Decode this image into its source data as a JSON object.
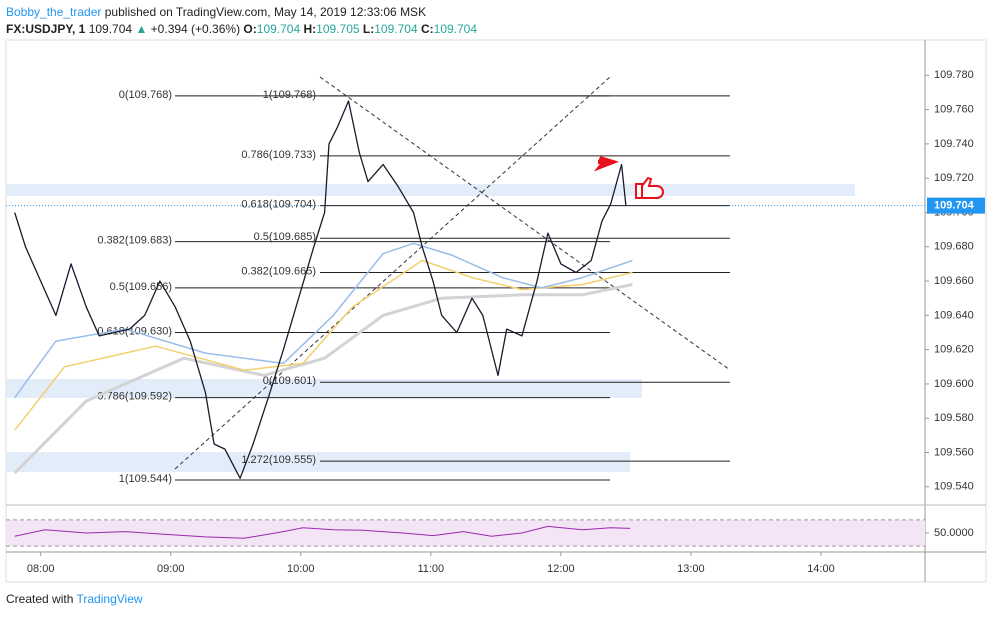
{
  "header": {
    "author": "Bobby_the_trader",
    "published": "published on TradingView.com, May 14, 2019 12:33:06 MSK",
    "symbol": "FX:USDJPY, 1",
    "last": "109.704",
    "arrow": "▲",
    "change": "+0.394 (+0.36%)",
    "o_label": "O:",
    "o": "109.704",
    "h_label": "H:",
    "h": "109.705",
    "l_label": "L:",
    "l": "109.704",
    "c_label": "C:",
    "c": "109.704"
  },
  "footer": {
    "created": "Created with",
    "brand": "TradingView"
  },
  "chart_data": {
    "type": "line",
    "xlim": [
      -16,
      408
    ],
    "xticks": [
      {
        "value": 0,
        "label": "08:00"
      },
      {
        "value": 60,
        "label": "09:00"
      },
      {
        "value": 120,
        "label": "10:00"
      },
      {
        "value": 180,
        "label": "11:00"
      },
      {
        "value": 240,
        "label": "12:00"
      },
      {
        "value": 300,
        "label": "13:00"
      },
      {
        "value": 360,
        "label": "14:00"
      }
    ],
    "ylim": [
      109.5294,
      109.8006
    ],
    "yticks": [
      {
        "value": 109.54,
        "label": "109.540"
      },
      {
        "value": 109.56,
        "label": "109.560"
      },
      {
        "value": 109.58,
        "label": "109.580"
      },
      {
        "value": 109.6,
        "label": "109.600"
      },
      {
        "value": 109.62,
        "label": "109.620"
      },
      {
        "value": 109.64,
        "label": "109.640"
      },
      {
        "value": 109.66,
        "label": "109.660"
      },
      {
        "value": 109.68,
        "label": "109.680"
      },
      {
        "value": 109.7,
        "label": "109.700"
      },
      {
        "value": 109.72,
        "label": "109.720"
      },
      {
        "value": 109.74,
        "label": "109.740"
      },
      {
        "value": 109.76,
        "label": "109.760"
      },
      {
        "value": 109.78,
        "label": "109.780"
      }
    ],
    "last_price": {
      "value": 109.704,
      "label": "109.704"
    },
    "series": [
      {
        "color": "#d3d3d3",
        "x": [
          -12,
          21,
          66,
          103,
          131,
          158,
          185,
          222,
          250,
          273
        ],
        "values": [
          109.548,
          109.59,
          109.615,
          109.605,
          109.615,
          109.64,
          109.65,
          109.652,
          109.652,
          109.658
        ]
      },
      {
        "color": "#f3cf6e",
        "x": [
          -12,
          11,
          53,
          94,
          121,
          144,
          176,
          199,
          222,
          250,
          273
        ],
        "values": [
          109.573,
          109.61,
          109.622,
          109.608,
          109.612,
          109.645,
          109.672,
          109.662,
          109.655,
          109.658,
          109.665
        ]
      },
      {
        "color": "#98bde8",
        "x": [
          -12,
          7,
          39,
          76,
          112,
          135,
          158,
          172,
          190,
          213,
          231,
          250,
          273
        ],
        "values": [
          109.592,
          109.625,
          109.632,
          109.618,
          109.612,
          109.64,
          109.676,
          109.682,
          109.675,
          109.662,
          109.656,
          109.662,
          109.672
        ]
      },
      {
        "color": "#1a1a2e",
        "x": [
          -12,
          -7,
          0,
          7,
          14,
          21,
          27,
          34,
          41,
          48,
          55,
          62,
          69,
          76,
          80,
          85,
          92,
          98,
          105,
          112,
          119,
          126,
          131,
          133,
          137,
          142,
          147,
          151,
          158,
          165,
          172,
          176,
          181,
          185,
          192,
          199,
          204,
          211,
          215,
          222,
          229,
          234,
          240,
          247,
          254,
          259,
          263,
          268,
          270
        ],
        "values": [
          109.7,
          109.68,
          109.66,
          109.64,
          109.67,
          109.645,
          109.628,
          109.63,
          109.632,
          109.64,
          109.66,
          109.645,
          109.625,
          109.595,
          109.565,
          109.562,
          109.545,
          109.565,
          109.592,
          109.62,
          109.65,
          109.68,
          109.7,
          109.74,
          109.75,
          109.765,
          109.735,
          109.718,
          109.728,
          109.715,
          109.7,
          109.68,
          109.66,
          109.64,
          109.63,
          109.65,
          109.64,
          109.605,
          109.632,
          109.628,
          109.66,
          109.688,
          109.67,
          109.665,
          109.672,
          109.695,
          109.705,
          109.728,
          109.704
        ]
      }
    ],
    "fib_left": [
      {
        "label": "0(109.768)",
        "value": 109.768
      },
      {
        "label": "0.382(109.683)",
        "value": 109.683
      },
      {
        "label": "0.5(109.656)",
        "value": 109.656
      },
      {
        "label": "0.618(109.630)",
        "value": 109.63
      },
      {
        "label": "0.786(109.592)",
        "value": 109.592
      },
      {
        "label": "1(109.544)",
        "value": 109.544
      }
    ],
    "fib_right": [
      {
        "label": "1(109.768)",
        "value": 109.768
      },
      {
        "label": "0.786(109.733)",
        "value": 109.733
      },
      {
        "label": "0.618(109.704)",
        "value": 109.704
      },
      {
        "label": "0.5(109.685)",
        "value": 109.685
      },
      {
        "label": "0.382(109.665)",
        "value": 109.665
      },
      {
        "label": "0(109.601)",
        "value": 109.601
      },
      {
        "label": "1.272(109.555)",
        "value": 109.555
      }
    ],
    "rsi": {
      "color": "#9c27b0",
      "ylim": [
        24,
        85
      ],
      "band": [
        30,
        70
      ],
      "yticks": [
        {
          "value": 50,
          "label": "50.0000"
        }
      ],
      "x": [
        -12,
        2,
        21,
        39,
        57,
        76,
        94,
        112,
        121,
        135,
        149,
        167,
        181,
        195,
        208,
        222,
        234,
        250,
        263,
        272
      ],
      "values": [
        45,
        55,
        50,
        52,
        48,
        44,
        42,
        52,
        58,
        55,
        54,
        50,
        46,
        52,
        45,
        50,
        60,
        55,
        58,
        57
      ]
    }
  }
}
